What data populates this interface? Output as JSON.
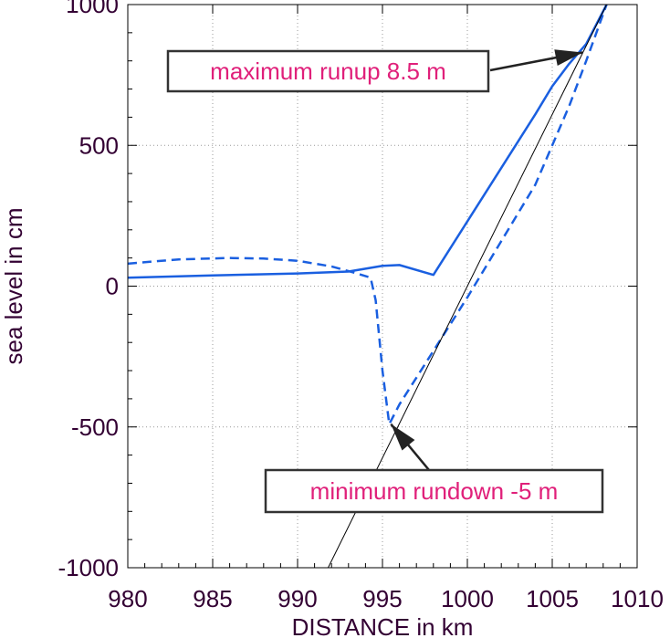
{
  "chart_data": {
    "type": "line",
    "title": "",
    "xlabel": "DISTANCE in km",
    "ylabel": "sea level in cm",
    "xlim": [
      980,
      1010
    ],
    "ylim": [
      -1000,
      1000
    ],
    "xticks": [
      "980",
      "985",
      "990",
      "995",
      "1000",
      "1005",
      "1010"
    ],
    "yticks": [
      "1000",
      "500",
      "0",
      "-500",
      "-1000"
    ],
    "grid": "dotted",
    "series": [
      {
        "style": "solid",
        "color": "#1a5fe0",
        "x": [
          980,
          985,
          990,
          993,
          995,
          996,
          998,
          1000,
          1002,
          1004,
          1005,
          1006,
          1007,
          1008.2
        ],
        "y": [
          30,
          38,
          45,
          52,
          72,
          75,
          40,
          230,
          420,
          610,
          710,
          790,
          860,
          1000
        ]
      },
      {
        "style": "dashed",
        "color": "#1a5fe0",
        "x": [
          980,
          983,
          986,
          988,
          990,
          992,
          993.5,
          994.3,
          994.6,
          995,
          995.4,
          996,
          998,
          1000,
          1002,
          1004,
          1006,
          1007,
          1008.2
        ],
        "y": [
          80,
          95,
          100,
          98,
          90,
          70,
          45,
          30,
          -50,
          -300,
          -490,
          -420,
          -230,
          -40,
          160,
          360,
          640,
          800,
          1000
        ]
      },
      {
        "style": "solid-thin",
        "color": "#000000",
        "x": [
          991.8,
          1008.2
        ],
        "y": [
          -1000,
          1000
        ]
      }
    ],
    "annotations": [
      {
        "text": "maximum runup 8.5 m",
        "arrow_to": [
          1006.8,
          830
        ]
      },
      {
        "text": "minimum rundown -5 m",
        "arrow_to": [
          995.5,
          -490
        ]
      }
    ]
  },
  "colors": {
    "text": "#330033",
    "series": "#1a5fe0",
    "annotation": "#e0207a"
  }
}
